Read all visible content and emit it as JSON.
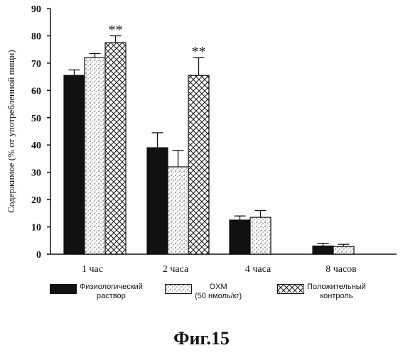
{
  "chart_data": {
    "type": "bar",
    "categories": [
      "1 час",
      "2 часа",
      "4 часа",
      "8 часов"
    ],
    "series": [
      {
        "name": "Физиологический раствор",
        "values": [
          65.5,
          39,
          12.5,
          3
        ],
        "errors": [
          2,
          5.5,
          1.5,
          1
        ],
        "pattern": "solid"
      },
      {
        "name": "OXM (50 нмоль/кг)",
        "values": [
          72,
          32,
          13.5,
          2.8
        ],
        "errors": [
          1.5,
          6,
          2.5,
          0.8
        ],
        "pattern": "stipple"
      },
      {
        "name": "Положительный контроль",
        "values": [
          77.5,
          65.5,
          null,
          null
        ],
        "errors": [
          2.5,
          6.5,
          null,
          null
        ],
        "pattern": "crosshatch"
      }
    ],
    "annotations": [
      "**",
      "**"
    ],
    "ylabel": "Содержимое (% от употребленной пищи)",
    "xlabel": "",
    "ylim": [
      0,
      90
    ],
    "yticks": [
      0,
      10,
      20,
      30,
      40,
      50,
      60,
      70,
      80,
      90
    ],
    "grid": false,
    "legend_position": "bottom"
  },
  "legend": {
    "item1_line1": "Физиологический",
    "item1_line2": "раствор",
    "item2_line1": "OXM",
    "item2_line2": "(50 нмоль/кг)",
    "item3_line1": "Положительный",
    "item3_line2": "контроль"
  },
  "caption": "Фиг.15"
}
